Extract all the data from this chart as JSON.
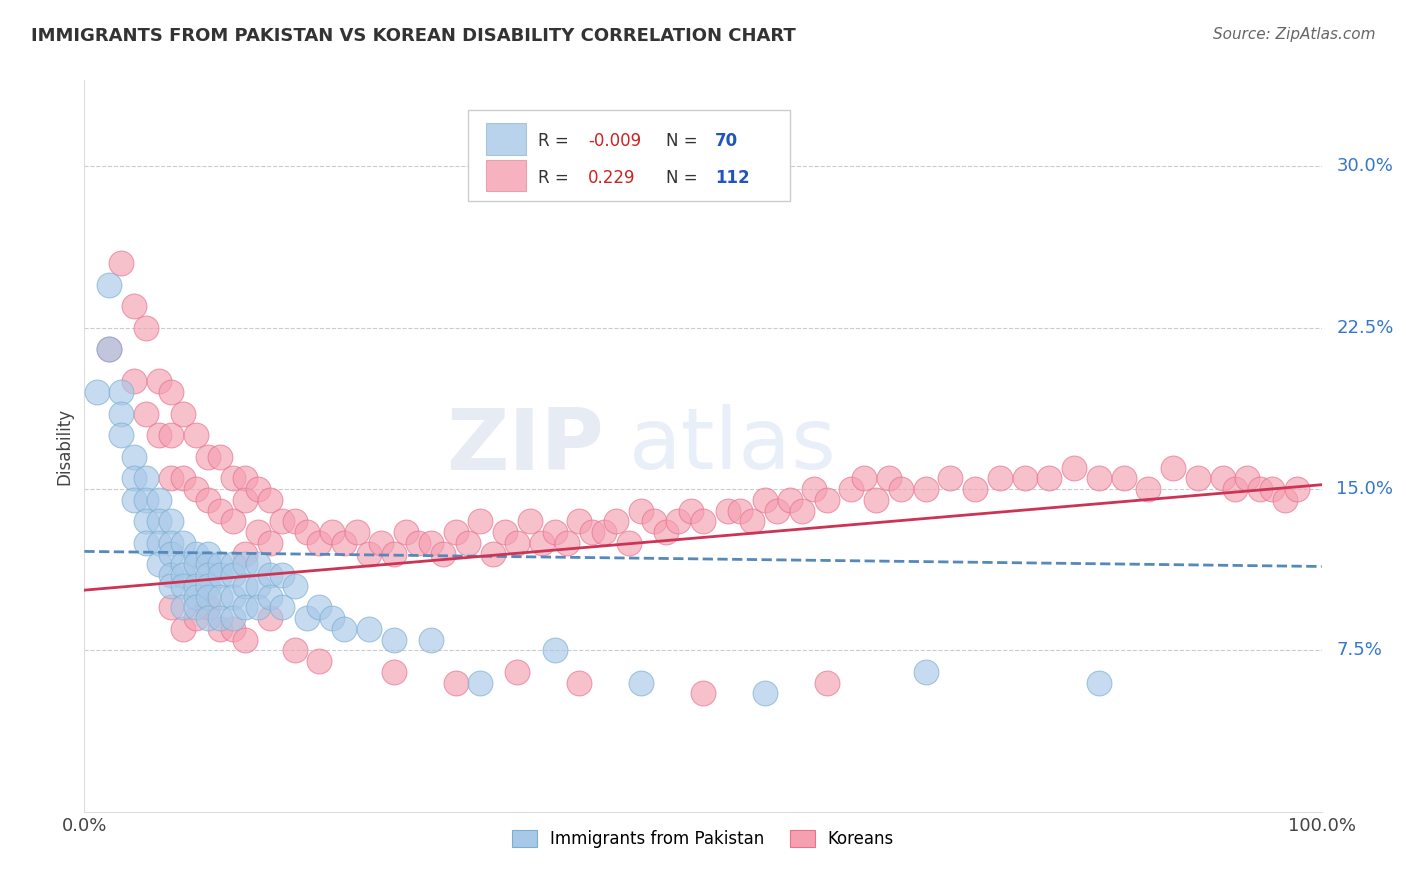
{
  "title": "IMMIGRANTS FROM PAKISTAN VS KOREAN DISABILITY CORRELATION CHART",
  "source": "Source: ZipAtlas.com",
  "ylabel": "Disability",
  "legend_label1": "Immigrants from Pakistan",
  "legend_label2": "Koreans",
  "r1": -0.009,
  "n1": 70,
  "r2": 0.229,
  "n2": 112,
  "color1": "#a8c8e8",
  "color2": "#f4a0b0",
  "color1_edge": "#7aafd0",
  "color2_edge": "#e87090",
  "trendline1_color": "#5588bb",
  "trendline2_color": "#cc3355",
  "xlim": [
    0.0,
    1.0
  ],
  "ylim": [
    0.0,
    0.34
  ],
  "yticks": [
    0.075,
    0.15,
    0.225,
    0.3
  ],
  "ytick_labels": [
    "7.5%",
    "15.0%",
    "22.5%",
    "30.0%"
  ],
  "xticks": [
    0.0,
    1.0
  ],
  "xtick_labels": [
    "0.0%",
    "100.0%"
  ],
  "background_color": "#ffffff",
  "grid_color": "#cccccc",
  "blue_trend_start_y": 0.121,
  "blue_trend_end_y": 0.114,
  "pink_trend_start_y": 0.103,
  "pink_trend_end_y": 0.152,
  "blue_scatter_x": [
    0.01,
    0.02,
    0.02,
    0.03,
    0.03,
    0.03,
    0.04,
    0.04,
    0.04,
    0.05,
    0.05,
    0.05,
    0.05,
    0.06,
    0.06,
    0.06,
    0.06,
    0.07,
    0.07,
    0.07,
    0.07,
    0.07,
    0.08,
    0.08,
    0.08,
    0.08,
    0.08,
    0.09,
    0.09,
    0.09,
    0.09,
    0.09,
    0.1,
    0.1,
    0.1,
    0.1,
    0.1,
    0.1,
    0.11,
    0.11,
    0.11,
    0.11,
    0.12,
    0.12,
    0.12,
    0.12,
    0.13,
    0.13,
    0.13,
    0.14,
    0.14,
    0.14,
    0.15,
    0.15,
    0.16,
    0.16,
    0.17,
    0.18,
    0.19,
    0.2,
    0.21,
    0.23,
    0.25,
    0.28,
    0.32,
    0.38,
    0.45,
    0.55,
    0.68,
    0.82
  ],
  "blue_scatter_y": [
    0.195,
    0.245,
    0.215,
    0.195,
    0.185,
    0.175,
    0.165,
    0.155,
    0.145,
    0.155,
    0.145,
    0.135,
    0.125,
    0.145,
    0.135,
    0.125,
    0.115,
    0.135,
    0.125,
    0.12,
    0.11,
    0.105,
    0.125,
    0.115,
    0.11,
    0.105,
    0.095,
    0.12,
    0.115,
    0.105,
    0.1,
    0.095,
    0.12,
    0.115,
    0.11,
    0.105,
    0.1,
    0.09,
    0.115,
    0.11,
    0.1,
    0.09,
    0.115,
    0.11,
    0.1,
    0.09,
    0.115,
    0.105,
    0.095,
    0.115,
    0.105,
    0.095,
    0.11,
    0.1,
    0.11,
    0.095,
    0.105,
    0.09,
    0.095,
    0.09,
    0.085,
    0.085,
    0.08,
    0.08,
    0.06,
    0.075,
    0.06,
    0.055,
    0.065,
    0.06
  ],
  "pink_scatter_x": [
    0.02,
    0.03,
    0.04,
    0.04,
    0.05,
    0.05,
    0.06,
    0.06,
    0.07,
    0.07,
    0.07,
    0.08,
    0.08,
    0.09,
    0.09,
    0.1,
    0.1,
    0.11,
    0.11,
    0.12,
    0.12,
    0.13,
    0.13,
    0.13,
    0.14,
    0.14,
    0.15,
    0.15,
    0.16,
    0.17,
    0.18,
    0.19,
    0.2,
    0.21,
    0.22,
    0.23,
    0.24,
    0.25,
    0.26,
    0.27,
    0.28,
    0.29,
    0.3,
    0.31,
    0.32,
    0.33,
    0.34,
    0.35,
    0.36,
    0.37,
    0.38,
    0.39,
    0.4,
    0.41,
    0.42,
    0.43,
    0.44,
    0.45,
    0.46,
    0.47,
    0.48,
    0.49,
    0.5,
    0.52,
    0.53,
    0.54,
    0.55,
    0.56,
    0.57,
    0.58,
    0.59,
    0.6,
    0.62,
    0.63,
    0.64,
    0.65,
    0.66,
    0.68,
    0.7,
    0.72,
    0.74,
    0.76,
    0.78,
    0.8,
    0.82,
    0.84,
    0.86,
    0.88,
    0.9,
    0.92,
    0.93,
    0.94,
    0.95,
    0.96,
    0.97,
    0.98,
    0.07,
    0.08,
    0.09,
    0.1,
    0.11,
    0.12,
    0.13,
    0.15,
    0.17,
    0.19,
    0.25,
    0.3,
    0.35,
    0.4,
    0.5,
    0.6
  ],
  "pink_scatter_y": [
    0.215,
    0.255,
    0.235,
    0.2,
    0.225,
    0.185,
    0.2,
    0.175,
    0.195,
    0.175,
    0.155,
    0.185,
    0.155,
    0.175,
    0.15,
    0.165,
    0.145,
    0.165,
    0.14,
    0.155,
    0.135,
    0.155,
    0.145,
    0.12,
    0.15,
    0.13,
    0.145,
    0.125,
    0.135,
    0.135,
    0.13,
    0.125,
    0.13,
    0.125,
    0.13,
    0.12,
    0.125,
    0.12,
    0.13,
    0.125,
    0.125,
    0.12,
    0.13,
    0.125,
    0.135,
    0.12,
    0.13,
    0.125,
    0.135,
    0.125,
    0.13,
    0.125,
    0.135,
    0.13,
    0.13,
    0.135,
    0.125,
    0.14,
    0.135,
    0.13,
    0.135,
    0.14,
    0.135,
    0.14,
    0.14,
    0.135,
    0.145,
    0.14,
    0.145,
    0.14,
    0.15,
    0.145,
    0.15,
    0.155,
    0.145,
    0.155,
    0.15,
    0.15,
    0.155,
    0.15,
    0.155,
    0.155,
    0.155,
    0.16,
    0.155,
    0.155,
    0.15,
    0.16,
    0.155,
    0.155,
    0.15,
    0.155,
    0.15,
    0.15,
    0.145,
    0.15,
    0.095,
    0.085,
    0.09,
    0.095,
    0.085,
    0.085,
    0.08,
    0.09,
    0.075,
    0.07,
    0.065,
    0.06,
    0.065,
    0.06,
    0.055,
    0.06
  ]
}
